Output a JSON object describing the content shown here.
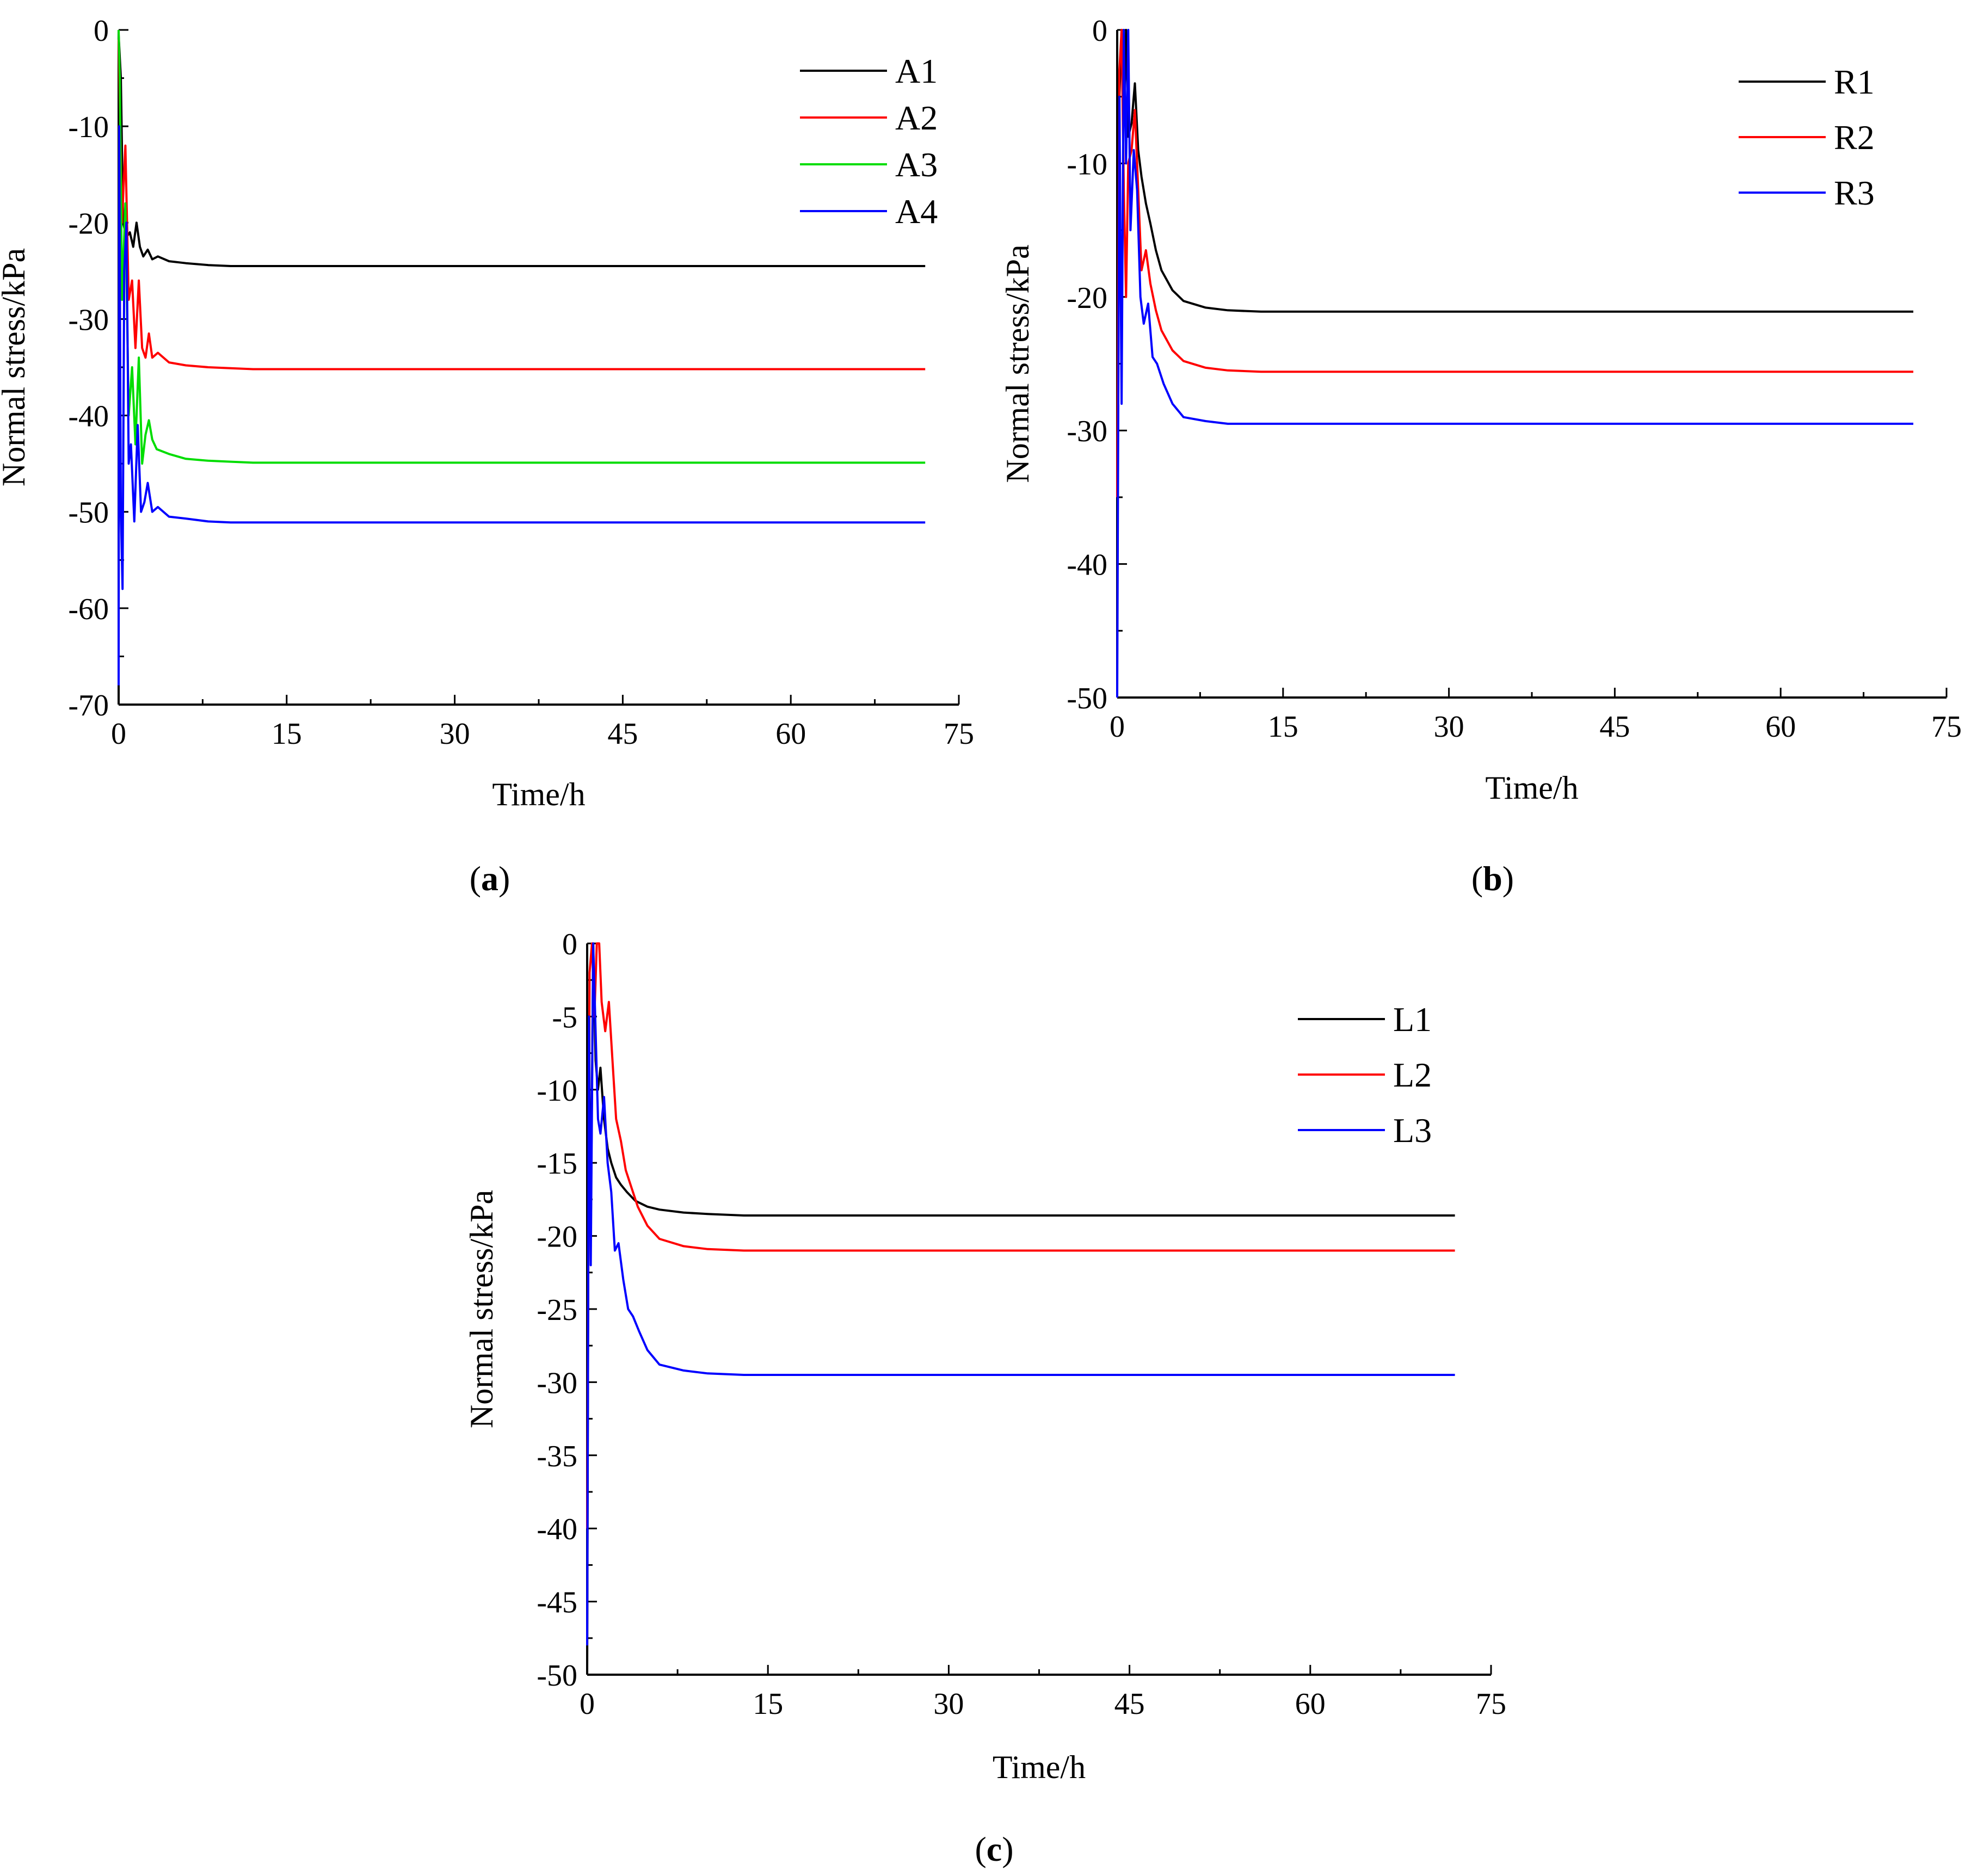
{
  "figure": {
    "panels": [
      {
        "id": "a",
        "label_open": "(",
        "label_letter": "a",
        "label_close": ")"
      },
      {
        "id": "b",
        "label_open": "(",
        "label_letter": "b",
        "label_close": ")"
      },
      {
        "id": "c",
        "label_open": "(",
        "label_letter": "c",
        "label_close": ")"
      }
    ]
  },
  "chart_data": [
    {
      "id": "a",
      "type": "line",
      "title": "",
      "xlabel": "Time/h",
      "ylabel": "Normal stress/kPa",
      "xlim": [
        0,
        75
      ],
      "ylim": [
        -70,
        0
      ],
      "xticks": [
        0,
        15,
        30,
        45,
        60,
        75
      ],
      "yticks": [
        0,
        -10,
        -20,
        -30,
        -40,
        -50,
        -60,
        -70
      ],
      "grid": false,
      "legend_position": "top-right",
      "series": [
        {
          "name": "A1",
          "color": "#000000",
          "x": [
            0,
            0.2,
            0.4,
            0.7,
            1.0,
            1.3,
            1.6,
            1.9,
            2.2,
            2.6,
            3.0,
            3.5,
            4.5,
            6,
            8,
            10,
            12,
            20,
            72
          ],
          "y": [
            -0.5,
            -5,
            -20,
            -21.5,
            -21,
            -22.5,
            -20,
            -22.5,
            -23.5,
            -22.8,
            -23.8,
            -23.5,
            -24,
            -24.2,
            -24.4,
            -24.5,
            -24.5,
            -24.5,
            -24.5
          ]
        },
        {
          "name": "A2",
          "color": "#ff0000",
          "x": [
            0,
            0.3,
            0.6,
            0.9,
            1.2,
            1.5,
            1.8,
            2.1,
            2.4,
            2.7,
            3.0,
            3.5,
            4.5,
            6,
            8,
            10,
            12,
            20,
            72
          ],
          "y": [
            -1,
            -20,
            -12,
            -28,
            -26,
            -33,
            -26,
            -33,
            -34,
            -31.5,
            -34,
            -33.5,
            -34.5,
            -34.8,
            -35,
            -35.1,
            -35.2,
            -35.2,
            -35.2
          ]
        },
        {
          "name": "A3",
          "color": "#00dd00",
          "x": [
            0,
            0.1,
            0.3,
            0.6,
            0.9,
            1.2,
            1.5,
            1.8,
            2.1,
            2.4,
            2.7,
            3.0,
            3.4,
            4.5,
            6,
            8,
            10,
            12,
            20,
            72
          ],
          "y": [
            0,
            -5,
            -28,
            -18,
            -40,
            -35,
            -43,
            -34,
            -45,
            -42,
            -40.5,
            -42.5,
            -43.5,
            -44,
            -44.5,
            -44.7,
            -44.8,
            -44.9,
            -44.9,
            -44.9
          ]
        },
        {
          "name": "A4",
          "color": "#0000ff",
          "x": [
            0,
            0.05,
            0.2,
            0.35,
            0.5,
            0.7,
            0.9,
            1.1,
            1.4,
            1.7,
            2.0,
            2.3,
            2.6,
            3.0,
            3.5,
            4.5,
            6,
            8,
            10,
            12,
            20,
            72
          ],
          "y": [
            -68,
            -10,
            -50,
            -58,
            -25,
            -20,
            -45,
            -43,
            -51,
            -41,
            -50,
            -49,
            -47,
            -50,
            -49.5,
            -50.5,
            -50.7,
            -51,
            -51.1,
            -51.1,
            -51.1,
            -51.1
          ]
        }
      ]
    },
    {
      "id": "b",
      "type": "line",
      "title": "",
      "xlabel": "Time/h",
      "ylabel": "Normal stress/kPa",
      "xlim": [
        0,
        75
      ],
      "ylim": [
        -50,
        0
      ],
      "xticks": [
        0,
        15,
        30,
        45,
        60,
        75
      ],
      "yticks": [
        0,
        -10,
        -20,
        -30,
        -40,
        -50
      ],
      "grid": false,
      "legend_position": "top-right",
      "series": [
        {
          "name": "R1",
          "color": "#000000",
          "x": [
            0,
            0.2,
            0.4,
            0.6,
            0.8,
            1.0,
            1.3,
            1.6,
            1.9,
            2.2,
            2.6,
            3.0,
            3.5,
            4.0,
            5,
            6,
            8,
            10,
            13,
            20,
            72
          ],
          "y": [
            -30,
            -5,
            0,
            -7,
            0,
            -8,
            -7,
            -4,
            -9,
            -11,
            -13,
            -14.5,
            -16.5,
            -18,
            -19.5,
            -20.3,
            -20.8,
            -21,
            -21.1,
            -21.1,
            -21.1
          ]
        },
        {
          "name": "R2",
          "color": "#ff0000",
          "x": [
            0,
            0.2,
            0.4,
            0.6,
            0.8,
            1.0,
            1.3,
            1.6,
            1.9,
            2.2,
            2.6,
            3.0,
            3.5,
            4.0,
            5,
            6,
            8,
            10,
            13,
            20,
            72
          ],
          "y": [
            -35,
            -3,
            0,
            -12,
            -20,
            -10,
            -9,
            -6,
            -12,
            -18,
            -16.5,
            -19,
            -21,
            -22.5,
            -24,
            -24.8,
            -25.3,
            -25.5,
            -25.6,
            -25.6,
            -25.6
          ]
        },
        {
          "name": "R3",
          "color": "#0000ff",
          "x": [
            0,
            0.2,
            0.4,
            0.6,
            0.8,
            1.0,
            1.2,
            1.5,
            1.8,
            2.1,
            2.4,
            2.8,
            3.2,
            3.6,
            4.2,
            5,
            6,
            8,
            10,
            13,
            20,
            72
          ],
          "y": [
            -50,
            -5,
            -28,
            0,
            -10,
            0,
            -15,
            -9,
            -12,
            -20,
            -22,
            -20.5,
            -24.5,
            -25,
            -26.5,
            -28,
            -29,
            -29.3,
            -29.5,
            -29.5,
            -29.5,
            -29.5
          ]
        }
      ]
    },
    {
      "id": "c",
      "type": "line",
      "title": "",
      "xlabel": "Time/h",
      "ylabel": "Normal stress/kPa",
      "xlim": [
        0,
        75
      ],
      "ylim": [
        -50,
        0
      ],
      "xticks": [
        0,
        15,
        30,
        45,
        60,
        75
      ],
      "yticks": [
        0,
        -5,
        -10,
        -15,
        -20,
        -25,
        -30,
        -35,
        -40,
        -45,
        -50
      ],
      "grid": false,
      "legend_position": "top-right",
      "series": [
        {
          "name": "L1",
          "color": "#000000",
          "x": [
            0,
            0.15,
            0.3,
            0.5,
            0.7,
            0.9,
            1.1,
            1.4,
            1.7,
            2.0,
            2.4,
            2.8,
            3.3,
            4.0,
            5,
            6,
            8,
            10,
            13,
            20,
            72
          ],
          "y": [
            -50,
            -5,
            -20,
            0,
            -8,
            -10,
            -8.5,
            -12,
            -14,
            -15,
            -16,
            -16.5,
            -17,
            -17.6,
            -18,
            -18.2,
            -18.4,
            -18.5,
            -18.6,
            -18.6,
            -18.6
          ]
        },
        {
          "name": "L2",
          "color": "#ff0000",
          "x": [
            0,
            0.2,
            0.4,
            0.6,
            0.8,
            1.0,
            1.2,
            1.5,
            1.8,
            2.1,
            2.4,
            2.8,
            3.2,
            3.6,
            4.2,
            5,
            6,
            8,
            10,
            13,
            20,
            72
          ],
          "y": [
            -40,
            -2,
            0,
            -5,
            0,
            0,
            -4,
            -6,
            -4,
            -8,
            -12,
            -13.5,
            -15.5,
            -16.5,
            -18,
            -19.3,
            -20.2,
            -20.7,
            -20.9,
            -21,
            -21,
            -21
          ]
        },
        {
          "name": "L3",
          "color": "#0000ff",
          "x": [
            0,
            0.15,
            0.3,
            0.5,
            0.7,
            0.9,
            1.1,
            1.4,
            1.7,
            2.0,
            2.3,
            2.6,
            3.0,
            3.4,
            3.8,
            4.3,
            5,
            6,
            8,
            10,
            13,
            20,
            72
          ],
          "y": [
            -48,
            -5,
            -22,
            0,
            -6,
            -12,
            -13,
            -10.5,
            -15,
            -17,
            -21,
            -20.5,
            -23,
            -25,
            -25.5,
            -26.5,
            -27.8,
            -28.8,
            -29.2,
            -29.4,
            -29.5,
            -29.5,
            -29.5
          ]
        }
      ]
    }
  ]
}
